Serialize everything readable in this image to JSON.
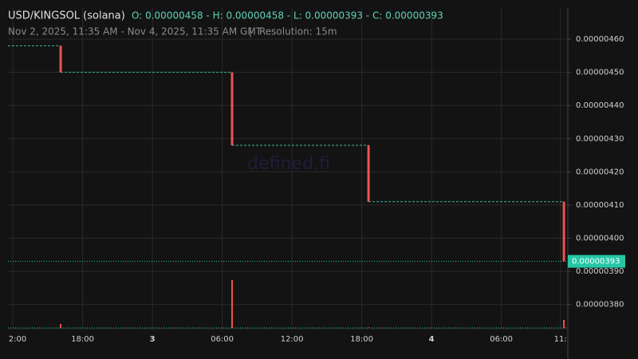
{
  "chart_data": {
    "type": "candlestick",
    "title": "USD/KINGSOL (solana)",
    "ohlc_label": "O: 0.00000458 - H: 0.00000458 - L: 0.00000393 - C: 0.00000393",
    "subtitle": "Nov 2, 2025, 11:35 AM - Nov 4, 2025, 11:35 AM GMT",
    "separator": "|",
    "resolution": "Resolution: 15m",
    "watermark": "defined.fi",
    "last_price_label": "0.00000393",
    "x": [
      4.53,
      19.27,
      31.0,
      47.8
    ],
    "open": [
      4.58e-06,
      4.5e-06,
      4.28e-06,
      4.11e-06
    ],
    "high": [
      4.58e-06,
      4.5e-06,
      4.28e-06,
      4.11e-06
    ],
    "low": [
      4.5e-06,
      4.28e-06,
      4.11e-06,
      3.93e-06
    ],
    "close": [
      4.5e-06,
      4.28e-06,
      4.11e-06,
      3.93e-06
    ],
    "volume": [
      5,
      60,
      0.5,
      10
    ],
    "color": "#ef5350",
    "volume_color": "#ef5350",
    "last_price_color": "#26c6a6",
    "xlim": [
      0,
      48
    ],
    "xticks": [
      {
        "value": 0.42,
        "label": "2:00"
      },
      {
        "value": 6.42,
        "label": "18:00"
      },
      {
        "value": 12.42,
        "label": "3"
      },
      {
        "value": 18.42,
        "label": "06:00"
      },
      {
        "value": 24.42,
        "label": "12:00"
      },
      {
        "value": 30.42,
        "label": "18:00"
      },
      {
        "value": 36.42,
        "label": "4"
      },
      {
        "value": 42.42,
        "label": "06:00"
      },
      {
        "value": 47.5,
        "label": "11:"
      }
    ],
    "ylim": [
      3.727e-06,
      4.694e-06
    ],
    "yticks": [
      {
        "value": 3.8e-06,
        "label": "0.00000380"
      },
      {
        "value": 3.9e-06,
        "label": "0.00000390"
      },
      {
        "value": 4e-06,
        "label": "0.00000400"
      },
      {
        "value": 4.1e-06,
        "label": "0.00000410"
      },
      {
        "value": 4.2e-06,
        "label": "0.00000420"
      },
      {
        "value": 4.3e-06,
        "label": "0.00000430"
      },
      {
        "value": 4.4e-06,
        "label": "0.00000440"
      },
      {
        "value": 4.5e-06,
        "label": "0.00000450"
      },
      {
        "value": 4.6e-06,
        "label": "0.00000460"
      }
    ],
    "grid": true
  }
}
